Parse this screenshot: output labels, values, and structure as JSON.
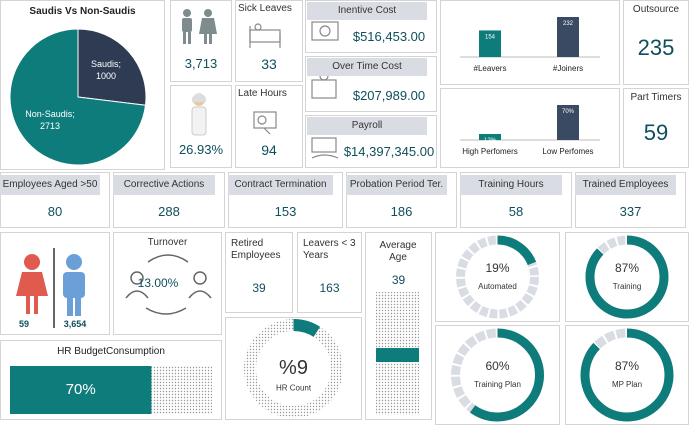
{
  "top_tiles": [
    {
      "title": "Sick Leaves",
      "value": "33"
    },
    {
      "title": "Inentive  Cost",
      "value": "$516,453.00"
    },
    {
      "title": "Over Time Cost",
      "value": "$207,989.00"
    },
    {
      "title": "Payroll",
      "value": "$14,397,345.00"
    },
    {
      "title": "Late Hours",
      "value": "94"
    },
    {
      "title": "Outsource",
      "value": "235"
    },
    {
      "title": "Part Timers",
      "value": "59"
    }
  ],
  "icon_tiles": [
    "3,713",
    "26.93%"
  ],
  "kpi_row": [
    {
      "title": "Employees  Aged >50",
      "value": "80"
    },
    {
      "title": "Corrective  Actions",
      "value": "288"
    },
    {
      "title": "Contract  Termination",
      "value": "153"
    },
    {
      "title": "Probation  Period  Ter.",
      "value": "186"
    },
    {
      "title": "Training  Hours",
      "value": "58"
    },
    {
      "title": "Trained  Employees",
      "value": "337"
    }
  ],
  "small_tiles": [
    {
      "title": "Retired Employees",
      "value": "39"
    },
    {
      "title": "Leavers  <  3 Years",
      "value": "163"
    }
  ],
  "gender": {
    "female": "59",
    "male": "3,654"
  },
  "turnover": {
    "title": "Turnover",
    "value": "13.00%"
  },
  "chart_data": [
    {
      "type": "pie",
      "title": "Saudis  Vs Non-Saudis",
      "categories": [
        "Saudis;",
        "Non-Saudis;"
      ],
      "values": [
        1000,
        2713
      ],
      "colors": [
        "#2f3b52",
        "#0e7c7b"
      ]
    },
    {
      "type": "bar",
      "categories": [
        "#Leavers",
        "#Joiners"
      ],
      "values": [
        154,
        232
      ],
      "colors": [
        "#0e7c7b",
        "#3b4a63"
      ]
    },
    {
      "type": "bar",
      "categories": [
        "High Perfomers",
        "Low Perfomes"
      ],
      "values": [
        12,
        70
      ],
      "value_labels": [
        "12%",
        "70%"
      ],
      "colors": [
        "#0e7c7b",
        "#3b4a63"
      ]
    },
    {
      "type": "donut",
      "title": "Automated",
      "value": 19,
      "value_label": "19%",
      "color": "#0e7c7b"
    },
    {
      "type": "donut",
      "title": "Training",
      "value": 87,
      "value_label": "87%",
      "color": "#0e7c7b"
    },
    {
      "type": "donut",
      "title": "Training Plan",
      "value": 60,
      "value_label": "60%",
      "color": "#0e7c7b"
    },
    {
      "type": "donut",
      "title": "MP Plan",
      "value": 87,
      "value_label": "87%",
      "color": "#0e7c7b"
    },
    {
      "type": "donut",
      "title": "HR Count",
      "value": 9,
      "value_label": "%9",
      "color": "#0e7c7b"
    },
    {
      "type": "hbar",
      "title": "HR BudgetConsumption",
      "value": 70,
      "value_label": "70%",
      "xlim": [
        0,
        100
      ],
      "color": "#0e7c7b"
    },
    {
      "type": "vgauge",
      "title": "Average Age",
      "value": 39,
      "ylim": [
        0,
        80
      ],
      "color": "#0e7c7b"
    }
  ]
}
